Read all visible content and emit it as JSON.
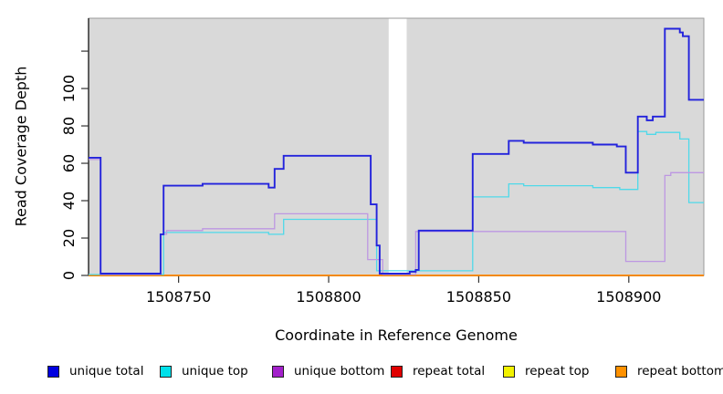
{
  "plot": {
    "bg": "#d9d9d9",
    "gap_bg": "#ffffff",
    "border_color": "#9a9a9a",
    "axis_color": "#000000",
    "tick_color": "#333333"
  },
  "x_axis": {
    "label": "Coordinate in Reference Genome",
    "min": 1508720,
    "max": 1508925,
    "ticks": [
      {
        "v": 1508750,
        "label": "1508750"
      },
      {
        "v": 1508800,
        "label": "1508800"
      },
      {
        "v": 1508850,
        "label": "1508850"
      },
      {
        "v": 1508900,
        "label": "1508900"
      }
    ]
  },
  "y_axis": {
    "label": "Read Coverage Depth",
    "min": 0,
    "max": 137.6,
    "ticks": [
      {
        "v": 0,
        "label": "0"
      },
      {
        "v": 20,
        "label": "20"
      },
      {
        "v": 40,
        "label": "40"
      },
      {
        "v": 60,
        "label": "60"
      },
      {
        "v": 80,
        "label": "80"
      },
      {
        "v": 100,
        "label": "100"
      },
      {
        "v": 120,
        "label": ""
      }
    ]
  },
  "chart_data": {
    "type": "line",
    "mode": "step-after",
    "title": "",
    "xlabel": "Coordinate in Reference Genome",
    "ylabel": "Read Coverage Depth",
    "xlim": [
      1508720,
      1508925
    ],
    "ylim": [
      0,
      137.6
    ],
    "grid": false,
    "coverage_regions": [
      [
        1508720,
        1508820
      ],
      [
        1508826,
        1508925
      ]
    ],
    "gap_region": [
      1508820,
      1508826
    ],
    "series": [
      {
        "name": "repeat total",
        "color": "#dd0000",
        "width": 1.2,
        "points": [
          [
            1508720,
            0
          ]
        ]
      },
      {
        "name": "repeat top",
        "color": "#eeee00",
        "width": 1.2,
        "points": [
          [
            1508720,
            0
          ]
        ]
      },
      {
        "name": "repeat bottom",
        "color": "#ff8c00",
        "width": 1.8,
        "points": [
          [
            1508720,
            0
          ]
        ]
      },
      {
        "name": "unique top",
        "color": "#4fd9e9",
        "width": 1.3,
        "points": [
          [
            1508720,
            0.5
          ],
          [
            1508745,
            23
          ],
          [
            1508780,
            22
          ],
          [
            1508785,
            30
          ],
          [
            1508816,
            2.5
          ],
          [
            1508848,
            42
          ],
          [
            1508860,
            49
          ],
          [
            1508865,
            48
          ],
          [
            1508888,
            47
          ],
          [
            1508897,
            46
          ],
          [
            1508903,
            77
          ],
          [
            1508906,
            75.5
          ],
          [
            1508909,
            76.5
          ],
          [
            1508917,
            73
          ],
          [
            1508920,
            39
          ]
        ]
      },
      {
        "name": "unique bottom",
        "color": "#bd97e2",
        "width": 1.3,
        "points": [
          [
            1508720,
            62
          ],
          [
            1508724,
            0.5
          ],
          [
            1508744,
            22
          ],
          [
            1508746,
            24
          ],
          [
            1508758,
            25
          ],
          [
            1508782,
            33
          ],
          [
            1508813,
            8.5
          ],
          [
            1508818,
            0.5
          ],
          [
            1508829,
            23.5
          ],
          [
            1508899,
            7.5
          ],
          [
            1508912,
            53.5
          ],
          [
            1508914,
            55
          ]
        ]
      },
      {
        "name": "unique total",
        "color": "#2323dc",
        "width": 1.9,
        "points": [
          [
            1508720,
            63
          ],
          [
            1508724,
            1
          ],
          [
            1508744,
            22
          ],
          [
            1508745,
            48
          ],
          [
            1508758,
            49
          ],
          [
            1508780,
            47
          ],
          [
            1508782,
            57
          ],
          [
            1508785,
            64
          ],
          [
            1508814,
            38
          ],
          [
            1508816,
            16
          ],
          [
            1508817,
            1
          ],
          [
            1508827,
            2
          ],
          [
            1508829,
            3
          ],
          [
            1508830,
            24
          ],
          [
            1508848,
            65
          ],
          [
            1508860,
            72
          ],
          [
            1508865,
            71
          ],
          [
            1508888,
            70
          ],
          [
            1508896,
            69
          ],
          [
            1508899,
            55
          ],
          [
            1508903,
            85
          ],
          [
            1508906,
            83
          ],
          [
            1508908,
            85
          ],
          [
            1508912,
            132
          ],
          [
            1508917,
            130
          ],
          [
            1508918,
            128
          ],
          [
            1508920,
            94
          ]
        ]
      }
    ]
  },
  "legend": {
    "items": [
      {
        "label": "unique total",
        "color": "#0000e0"
      },
      {
        "label": "unique top",
        "color": "#00e0ea"
      },
      {
        "label": "unique bottom",
        "color": "#a321cb"
      },
      {
        "label": "repeat total",
        "color": "#e00000"
      },
      {
        "label": "repeat top",
        "color": "#f2f200"
      },
      {
        "label": "repeat bottom",
        "color": "#ff9100"
      }
    ]
  }
}
